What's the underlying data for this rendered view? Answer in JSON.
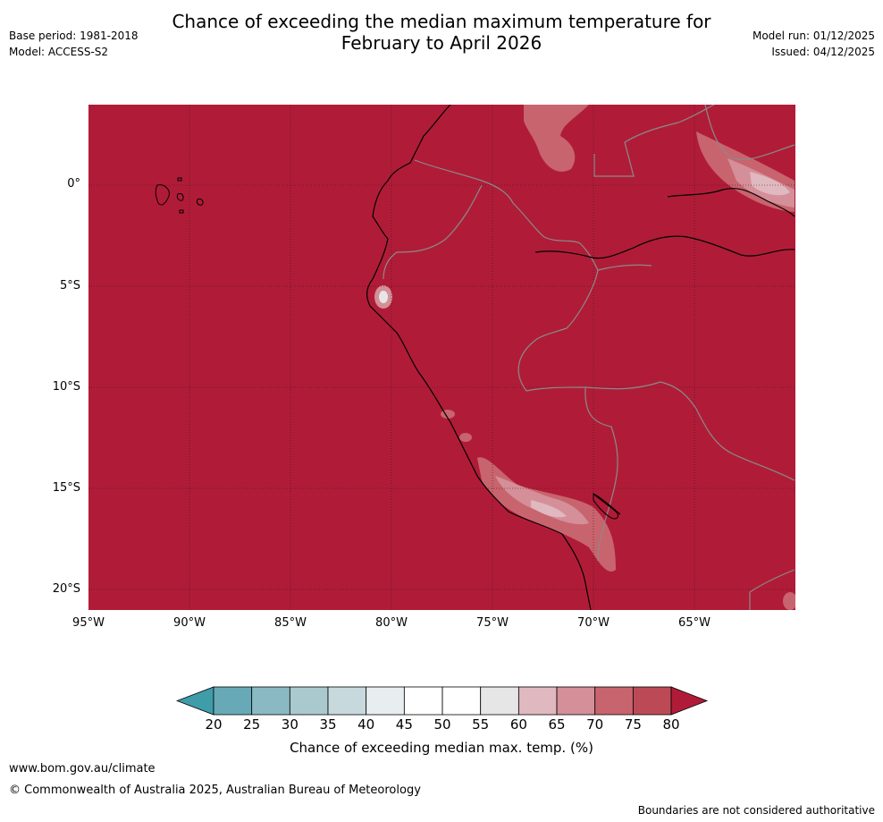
{
  "header": {
    "title_line1": "Chance of exceeding the median maximum temperature for",
    "title_line2": "February to April 2026",
    "base_period": "Base period: 1981-2018",
    "model": "Model: ACCESS-S2",
    "model_run": "Model run: 01/12/2025",
    "issued": "Issued: 04/12/2025"
  },
  "map": {
    "lat_labels": [
      "0°",
      "5°S",
      "10°S",
      "15°S",
      "20°S"
    ],
    "lon_labels": [
      "95°W",
      "90°W",
      "85°W",
      "80°W",
      "75°W",
      "70°W",
      "65°W"
    ],
    "background_fill_color": "#b01c38"
  },
  "colorbar": {
    "label": "Chance of exceeding median max. temp. (%)",
    "ticks": [
      "20",
      "25",
      "30",
      "35",
      "40",
      "45",
      "50",
      "55",
      "60",
      "65",
      "70",
      "75",
      "80"
    ],
    "colors": [
      "#68a9b7",
      "#8ab9c4",
      "#a9c9cf",
      "#c8d9dd",
      "#e8eef0",
      "#ffffff",
      "#ffffff",
      "#e6e6e6",
      "#e0b8bf",
      "#d48f98",
      "#c8646e",
      "#bc4a56"
    ],
    "under_color": "#3f9ca9",
    "over_color": "#b01c38"
  },
  "footer": {
    "website": "www.bom.gov.au/climate",
    "copyright": "© Commonwealth of Australia 2025, Australian Bureau of Meteorology",
    "disclaimer": "Boundaries are not considered authoritative"
  }
}
